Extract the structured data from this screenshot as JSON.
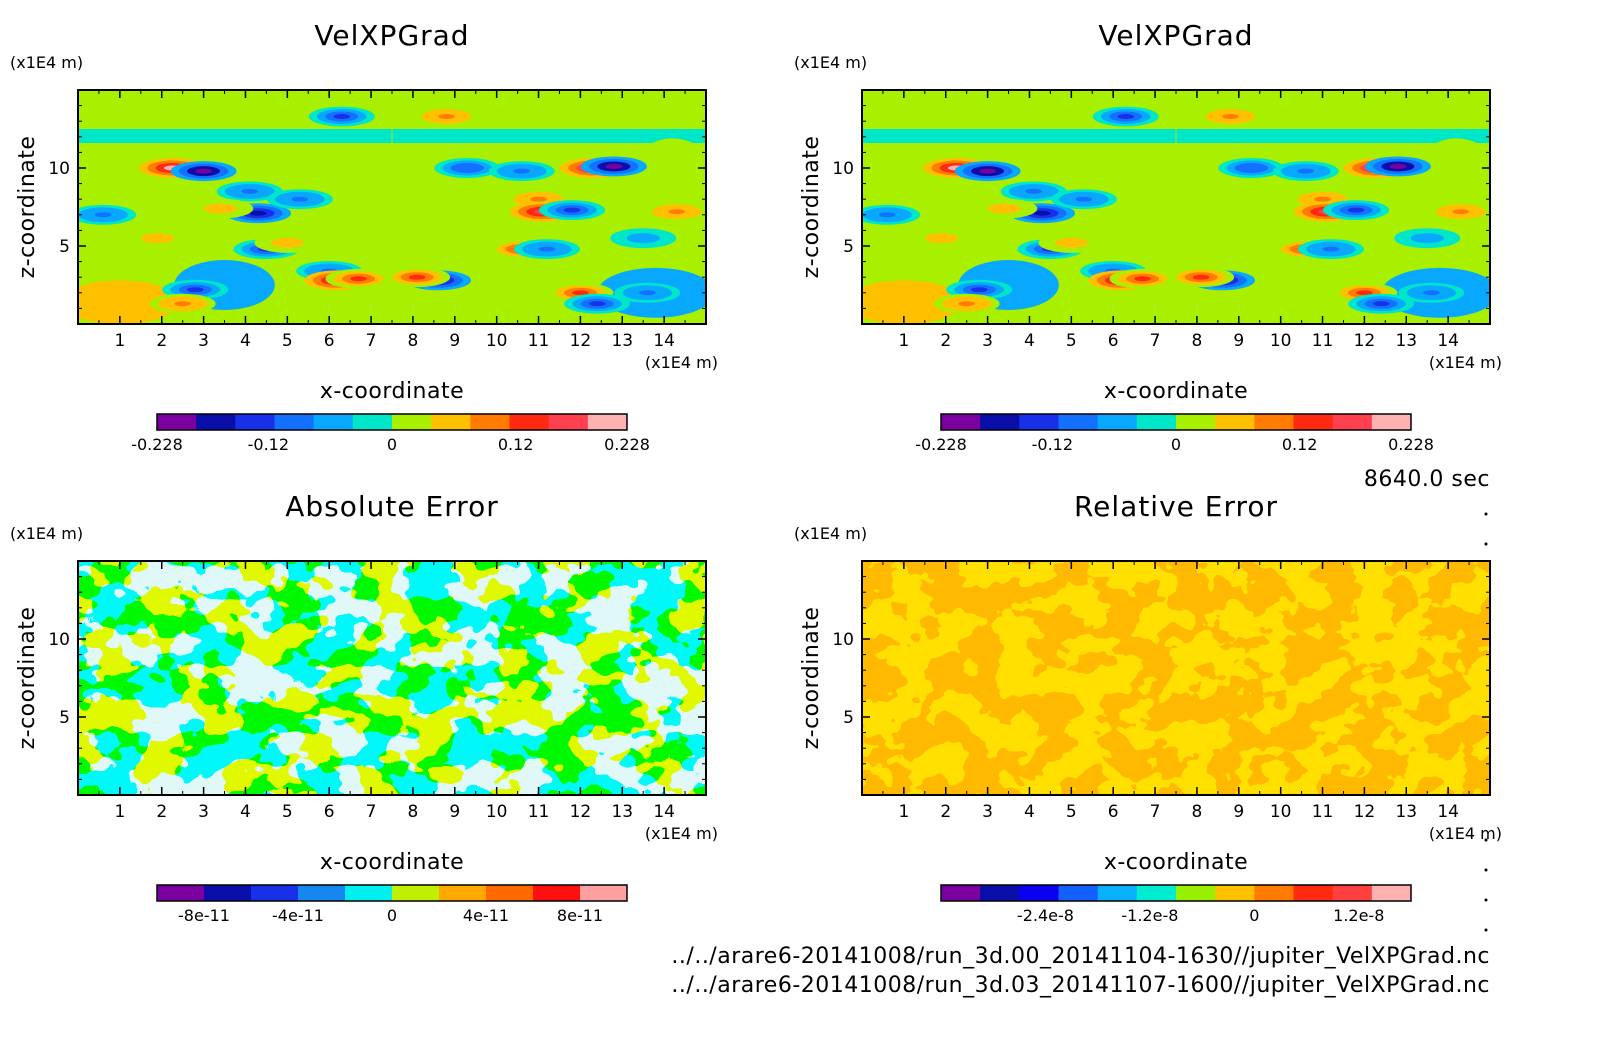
{
  "info": {
    "time_label": "8640.0 sec",
    "file_a": "../../arare6-20141008/run_3d.00_20141104-1630//jupiter_VelXPGrad.nc",
    "file_b": "../../arare6-20141008/run_3d.03_20141107-1600//jupiter_VelXPGrad.nc"
  },
  "chart_data": [
    {
      "type": "heatmap",
      "title": "VelXPGrad",
      "xlabel": "x-coordinate",
      "ylabel": "z-coordinate",
      "x_unit": "(x1E4 m)",
      "y_unit": "(x1E4 m)",
      "xlim": [
        0,
        15
      ],
      "ylim": [
        0,
        15
      ],
      "x_ticks": [
        1,
        2,
        3,
        4,
        5,
        6,
        7,
        8,
        9,
        10,
        11,
        12,
        13,
        14
      ],
      "y_ticks": [
        5,
        10
      ],
      "colorbar": {
        "colors": [
          "#7a00a0",
          "#0a0ea8",
          "#1830e8",
          "#1470ff",
          "#08a8ff",
          "#00e6c8",
          "#a8f000",
          "#ffc000",
          "#ff7c00",
          "#ff2a10",
          "#ff4050",
          "#ffb0b0"
        ],
        "tick_labels": [
          "-0.228",
          "-0.12",
          "0",
          "0.12",
          "0.228"
        ],
        "tick_values": [
          -0.228,
          -0.12,
          0,
          0.12,
          0.228
        ],
        "range": [
          -0.228,
          0.228
        ]
      },
      "field": {
        "background": 0,
        "features": [
          {
            "x": 2.25,
            "z": 10.0,
            "value": 0.2
          },
          {
            "x": 3.0,
            "z": 9.8,
            "value": -0.21
          },
          {
            "x": 4.1,
            "z": 8.5,
            "value": -0.1
          },
          {
            "x": 4.3,
            "z": 7.1,
            "value": -0.16
          },
          {
            "x": 5.3,
            "z": 8.0,
            "value": -0.1
          },
          {
            "x": 3.4,
            "z": 7.4,
            "value": 0.07
          },
          {
            "x": 1.9,
            "z": 5.5,
            "value": 0.06
          },
          {
            "x": 4.5,
            "z": 4.8,
            "value": -0.14
          },
          {
            "x": 2.8,
            "z": 2.2,
            "value": -0.14
          },
          {
            "x": 2.5,
            "z": 1.3,
            "value": 0.09
          },
          {
            "x": 6.0,
            "z": 3.4,
            "value": -0.08
          },
          {
            "x": 6.2,
            "z": 2.8,
            "value": 0.17
          },
          {
            "x": 6.7,
            "z": 2.9,
            "value": 0.15
          },
          {
            "x": 8.6,
            "z": 2.8,
            "value": -0.16
          },
          {
            "x": 8.1,
            "z": 3.0,
            "value": 0.14
          },
          {
            "x": 9.3,
            "z": 10.0,
            "value": -0.11
          },
          {
            "x": 11.0,
            "z": 8.0,
            "value": 0.08
          },
          {
            "x": 11.1,
            "z": 7.2,
            "value": 0.18
          },
          {
            "x": 11.8,
            "z": 7.3,
            "value": -0.15
          },
          {
            "x": 12.3,
            "z": 10.0,
            "value": 0.21
          },
          {
            "x": 12.8,
            "z": 10.1,
            "value": -0.22
          },
          {
            "x": 10.6,
            "z": 9.8,
            "value": -0.1
          },
          {
            "x": 10.6,
            "z": 4.8,
            "value": 0.13
          },
          {
            "x": 11.2,
            "z": 4.8,
            "value": -0.1
          },
          {
            "x": 12.0,
            "z": 2.0,
            "value": 0.13
          },
          {
            "x": 12.4,
            "z": 1.3,
            "value": -0.13
          },
          {
            "x": 13.6,
            "z": 2.0,
            "value": -0.09
          },
          {
            "x": 14.3,
            "z": 7.2,
            "value": 0.08
          },
          {
            "x": 0.6,
            "z": 7.0,
            "value": -0.08
          },
          {
            "x": 5.0,
            "z": 5.2,
            "value": 0.06
          },
          {
            "x": 13.5,
            "z": 5.5,
            "value": -0.06
          },
          {
            "x": 6.3,
            "z": 13.3,
            "value": -0.12
          },
          {
            "x": 8.8,
            "z": 13.3,
            "value": 0.1
          }
        ]
      }
    },
    {
      "type": "heatmap",
      "title": "VelXPGrad",
      "xlabel": "x-coordinate",
      "ylabel": "z-coordinate",
      "x_unit": "(x1E4 m)",
      "y_unit": "(x1E4 m)",
      "xlim": [
        0,
        15
      ],
      "ylim": [
        0,
        15
      ],
      "x_ticks": [
        1,
        2,
        3,
        4,
        5,
        6,
        7,
        8,
        9,
        10,
        11,
        12,
        13,
        14
      ],
      "y_ticks": [
        5,
        10
      ],
      "colorbar": {
        "colors": [
          "#7a00a0",
          "#0a0ea8",
          "#1830e8",
          "#1470ff",
          "#08a8ff",
          "#00e6c8",
          "#a8f000",
          "#ffc000",
          "#ff7c00",
          "#ff2a10",
          "#ff4050",
          "#ffb0b0"
        ],
        "tick_labels": [
          "-0.228",
          "-0.12",
          "0",
          "0.12",
          "0.228"
        ],
        "tick_values": [
          -0.228,
          -0.12,
          0,
          0.12,
          0.228
        ],
        "range": [
          -0.228,
          0.228
        ]
      },
      "field": {
        "background": 0,
        "features": [
          {
            "x": 2.25,
            "z": 10.0,
            "value": 0.2
          },
          {
            "x": 3.0,
            "z": 9.8,
            "value": -0.21
          },
          {
            "x": 4.1,
            "z": 8.5,
            "value": -0.1
          },
          {
            "x": 4.3,
            "z": 7.1,
            "value": -0.16
          },
          {
            "x": 5.3,
            "z": 8.0,
            "value": -0.1
          },
          {
            "x": 3.4,
            "z": 7.4,
            "value": 0.07
          },
          {
            "x": 1.9,
            "z": 5.5,
            "value": 0.06
          },
          {
            "x": 4.5,
            "z": 4.8,
            "value": -0.14
          },
          {
            "x": 2.8,
            "z": 2.2,
            "value": -0.14
          },
          {
            "x": 2.5,
            "z": 1.3,
            "value": 0.09
          },
          {
            "x": 6.0,
            "z": 3.4,
            "value": -0.08
          },
          {
            "x": 6.2,
            "z": 2.8,
            "value": 0.17
          },
          {
            "x": 6.7,
            "z": 2.9,
            "value": 0.15
          },
          {
            "x": 8.6,
            "z": 2.8,
            "value": -0.16
          },
          {
            "x": 8.1,
            "z": 3.0,
            "value": 0.14
          },
          {
            "x": 9.3,
            "z": 10.0,
            "value": -0.11
          },
          {
            "x": 11.0,
            "z": 8.0,
            "value": 0.08
          },
          {
            "x": 11.1,
            "z": 7.2,
            "value": 0.18
          },
          {
            "x": 11.8,
            "z": 7.3,
            "value": -0.15
          },
          {
            "x": 12.3,
            "z": 10.0,
            "value": 0.21
          },
          {
            "x": 12.8,
            "z": 10.1,
            "value": -0.22
          },
          {
            "x": 10.6,
            "z": 9.8,
            "value": -0.1
          },
          {
            "x": 10.6,
            "z": 4.8,
            "value": 0.13
          },
          {
            "x": 11.2,
            "z": 4.8,
            "value": -0.1
          },
          {
            "x": 12.0,
            "z": 2.0,
            "value": 0.13
          },
          {
            "x": 12.4,
            "z": 1.3,
            "value": -0.13
          },
          {
            "x": 13.6,
            "z": 2.0,
            "value": -0.09
          },
          {
            "x": 14.3,
            "z": 7.2,
            "value": 0.08
          },
          {
            "x": 0.6,
            "z": 7.0,
            "value": -0.08
          },
          {
            "x": 5.0,
            "z": 5.2,
            "value": 0.06
          },
          {
            "x": 13.5,
            "z": 5.5,
            "value": -0.06
          },
          {
            "x": 6.3,
            "z": 13.3,
            "value": -0.12
          },
          {
            "x": 8.8,
            "z": 13.3,
            "value": 0.1
          }
        ]
      }
    },
    {
      "type": "heatmap",
      "title": "Absolute Error",
      "xlabel": "x-coordinate",
      "ylabel": "z-coordinate",
      "x_unit": "(x1E4 m)",
      "y_unit": "(x1E4 m)",
      "xlim": [
        0,
        15
      ],
      "ylim": [
        0,
        15
      ],
      "x_ticks": [
        1,
        2,
        3,
        4,
        5,
        6,
        7,
        8,
        9,
        10,
        11,
        12,
        13,
        14
      ],
      "y_ticks": [
        5,
        10
      ],
      "colorbar": {
        "colors": [
          "#7a00a0",
          "#0a0ea8",
          "#1830e8",
          "#1488f0",
          "#00f0f0",
          "#c0f000",
          "#ffa800",
          "#ff6a00",
          "#ff1010",
          "#ffa0a0"
        ],
        "tick_labels": [
          "-8e-11",
          "-4e-11",
          "0",
          "4e-11",
          "8e-11"
        ],
        "tick_values": [
          -8e-11,
          -4e-11,
          0,
          4e-11,
          8e-11
        ],
        "range": [
          -1e-10,
          1e-10
        ]
      },
      "field": {
        "palette": [
          "#00f0f0",
          "#c0f000"
        ],
        "description_values": [
          -1e-11,
          1e-11
        ]
      }
    },
    {
      "type": "heatmap",
      "title": "Relative Error",
      "xlabel": "x-coordinate",
      "ylabel": "z-coordinate",
      "x_unit": "(x1E4 m)",
      "y_unit": "(x1E4 m)",
      "xlim": [
        0,
        15
      ],
      "ylim": [
        0,
        15
      ],
      "x_ticks": [
        1,
        2,
        3,
        4,
        5,
        6,
        7,
        8,
        9,
        10,
        11,
        12,
        13,
        14
      ],
      "y_ticks": [
        5,
        10
      ],
      "colorbar": {
        "colors": [
          "#7a00a0",
          "#0a0ea8",
          "#0a00f0",
          "#1460ff",
          "#08b0ff",
          "#00ecd0",
          "#98f000",
          "#ffc000",
          "#ff7c00",
          "#ff2a10",
          "#ff4040",
          "#ffb0b0"
        ],
        "tick_labels": [
          "-2.4e-8",
          "-1.2e-8",
          "0",
          "1.2e-8"
        ],
        "tick_values": [
          -2.4e-08,
          -1.2e-08,
          0,
          1.2e-08
        ],
        "range": [
          -3.6e-08,
          1.8e-08
        ]
      },
      "field": {
        "palette": [
          "#ffc000",
          "#ff7c00"
        ],
        "description_values": [
          1e-09,
          4e-09
        ]
      }
    }
  ]
}
